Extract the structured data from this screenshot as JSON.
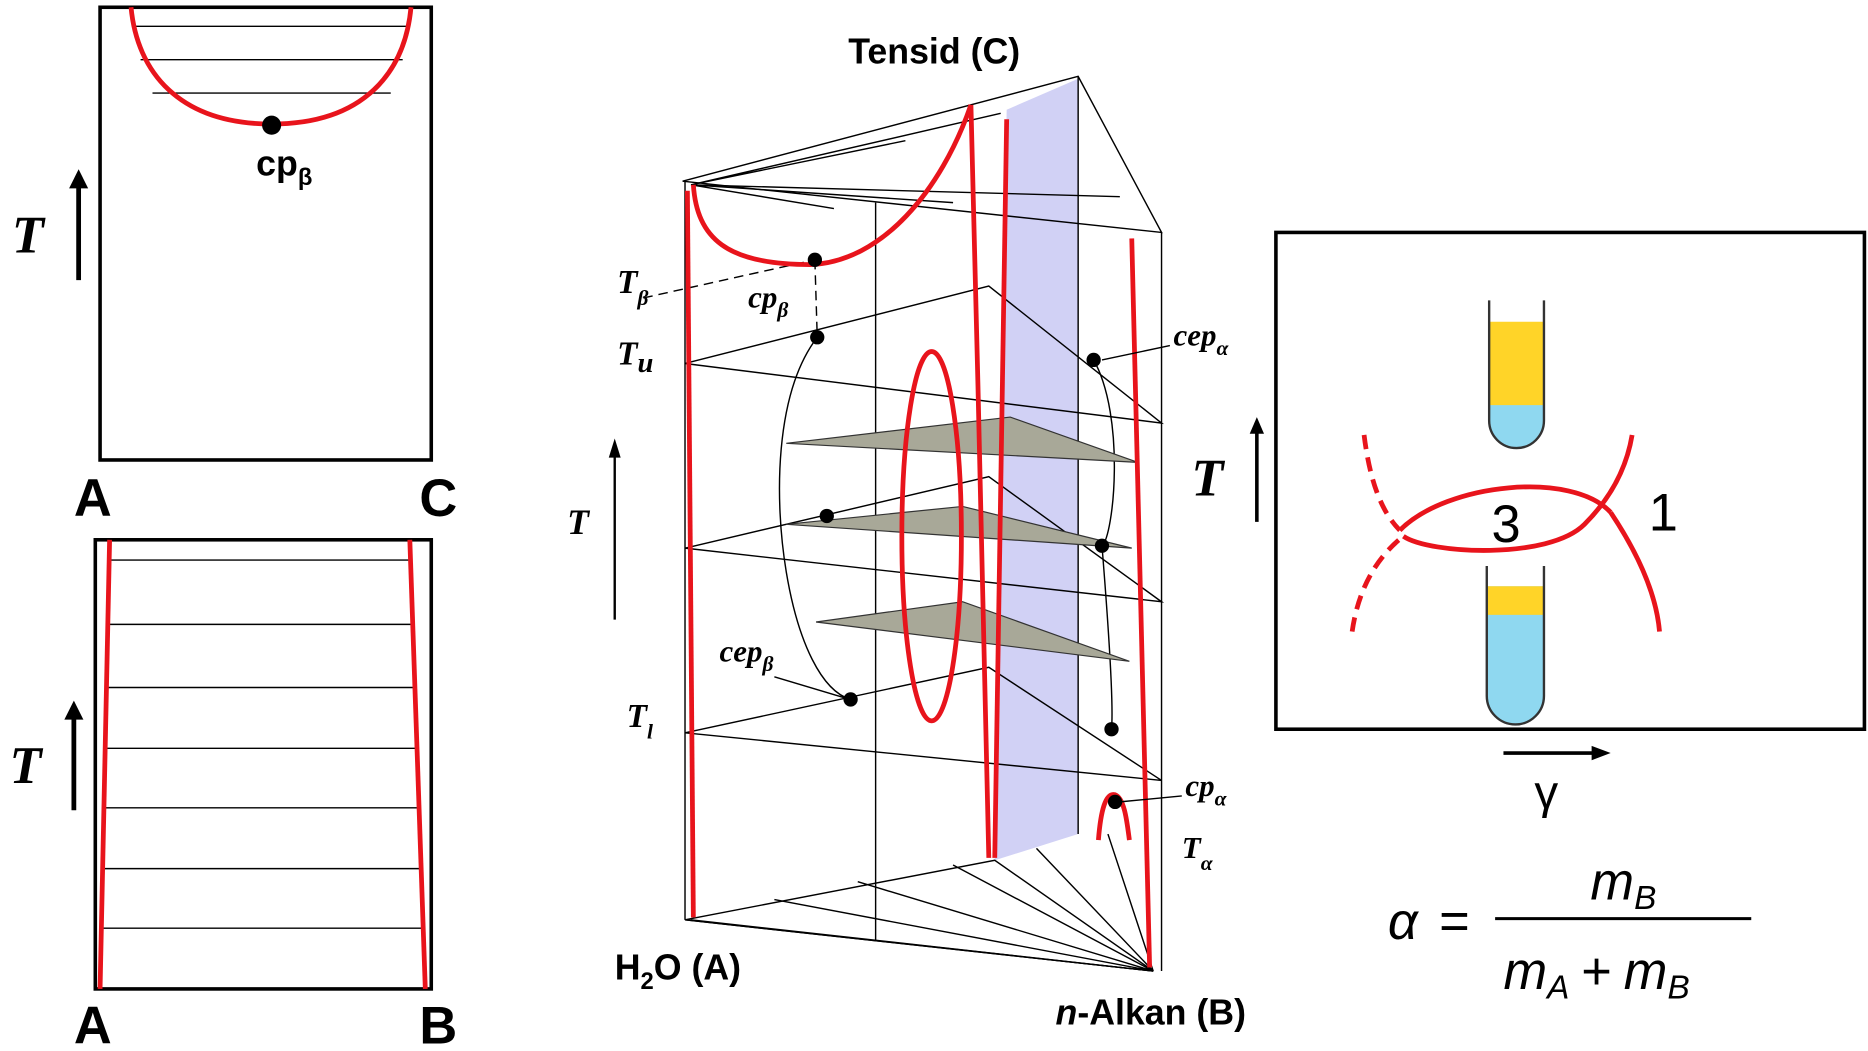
{
  "panel_ac": {
    "axis_label": "T",
    "left_label": "A",
    "right_label": "C",
    "point": {
      "text": "cp",
      "sub": "β"
    }
  },
  "panel_ab": {
    "axis_label": "T",
    "left_label": "A",
    "right_label": "B"
  },
  "prism": {
    "vertex_c": "Tensid (C)",
    "vertex_a": {
      "text": "H",
      "sub": "2",
      "rest": "O (A)"
    },
    "vertex_b": {
      "prefix": "n",
      "rest": "-Alkan (B)"
    },
    "axis_label": "T",
    "temperatures": [
      {
        "text": "T",
        "sub": "β"
      },
      {
        "text": "T",
        "sub": "u"
      },
      {
        "text": "T",
        "sub": "l"
      },
      {
        "text": "T",
        "sub": "α"
      }
    ],
    "points": [
      {
        "text": "cp",
        "sub": "β"
      },
      {
        "text": "cep",
        "sub": "α"
      },
      {
        "text": "cep",
        "sub": "β"
      },
      {
        "text": "cp",
        "sub": "α"
      }
    ]
  },
  "inset": {
    "axis_label": "T",
    "phase_3": "3",
    "phase_1": "1",
    "x_label": "γ"
  },
  "formula": {
    "lhs": "α",
    "equals": "=",
    "numerator": {
      "text": "m",
      "sub": "B"
    },
    "denominator": [
      {
        "text": "m",
        "sub": "A"
      },
      {
        "text": "+"
      },
      {
        "text": "m",
        "sub": "B"
      }
    ]
  }
}
